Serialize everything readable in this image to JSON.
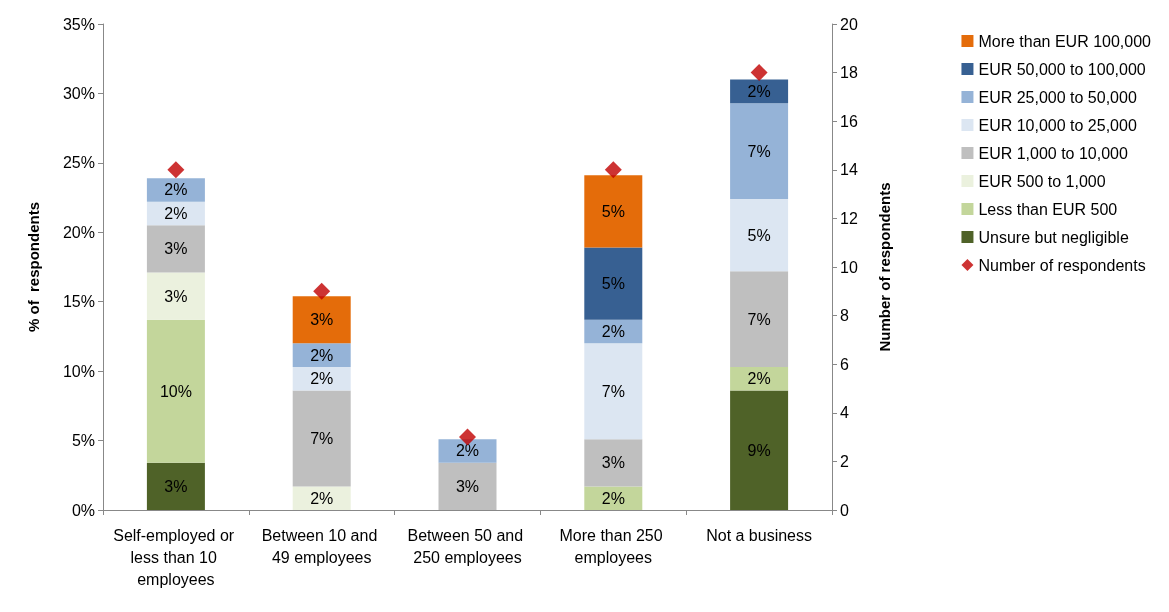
{
  "chart_data": {
    "type": "bar",
    "stacked": true,
    "ylabel": "% of  respondents",
    "y2label": "Number of respondents",
    "categories": [
      "Self-employed or less than 10 employees",
      "Between 10 and 49 employees",
      "Between 50 and 250 employees",
      "More than 250 employees",
      "Not a business"
    ],
    "series": [
      {
        "name": "Unsure but negligible",
        "color": "#4f6228",
        "values": [
          3.4,
          null,
          null,
          null,
          8.6
        ],
        "value_labels": [
          "3%",
          null,
          null,
          null,
          "9%"
        ]
      },
      {
        "name": "Less than EUR 500",
        "color": "#c3d69b",
        "values": [
          10.3,
          null,
          null,
          1.7,
          1.7
        ],
        "value_labels": [
          "10%",
          null,
          null,
          "2%",
          "2%"
        ]
      },
      {
        "name": "EUR 500 to 1,000",
        "color": "#ebf1de",
        "values": [
          3.4,
          1.7,
          null,
          null,
          null
        ],
        "value_labels": [
          "3%",
          "2%",
          null,
          null,
          null
        ]
      },
      {
        "name": "EUR 1,000 to 10,000",
        "color": "#bfbfbf",
        "values": [
          3.4,
          6.9,
          3.4,
          3.4,
          6.9
        ],
        "value_labels": [
          "3%",
          "7%",
          "3%",
          "3%",
          "7%"
        ]
      },
      {
        "name": "EUR 10,000 to 25,000",
        "color": "#dce6f2",
        "values": [
          1.7,
          1.7,
          null,
          6.9,
          5.2
        ],
        "value_labels": [
          "2%",
          "2%",
          null,
          "7%",
          "5%"
        ]
      },
      {
        "name": "EUR 25,000 to 50,000",
        "color": "#95b3d7",
        "values": [
          1.7,
          1.7,
          1.7,
          1.7,
          6.9
        ],
        "value_labels": [
          "2%",
          "2%",
          "2%",
          "2%",
          "7%"
        ]
      },
      {
        "name": "EUR 50,000 to 100,000",
        "color": "#376092",
        "values": [
          null,
          null,
          null,
          5.2,
          1.7
        ],
        "value_labels": [
          null,
          null,
          null,
          "5%",
          "2%"
        ]
      },
      {
        "name": "More than EUR 100,000",
        "color": "#e46c0a",
        "values": [
          null,
          3.4,
          null,
          5.2,
          null
        ],
        "value_labels": [
          null,
          "3%",
          null,
          "5%",
          null
        ]
      },
      {
        "name": "Number of respondents",
        "type": "scatter",
        "axis": "y2",
        "marker": "diamond",
        "color": "#c00000",
        "values": [
          14,
          9,
          3,
          14,
          18
        ]
      }
    ],
    "ylim": [
      0,
      35
    ],
    "yticks": [
      {
        "value": 0,
        "label": "0%"
      },
      {
        "value": 5,
        "label": "5%"
      },
      {
        "value": 10,
        "label": "10%"
      },
      {
        "value": 15,
        "label": "15%"
      },
      {
        "value": 20,
        "label": "20%"
      },
      {
        "value": 25,
        "label": "25%"
      },
      {
        "value": 30,
        "label": "30%"
      },
      {
        "value": 35,
        "label": "35%"
      }
    ],
    "y2lim": [
      0,
      20
    ],
    "y2ticks": [
      0,
      2,
      4,
      6,
      8,
      10,
      12,
      14,
      16,
      18,
      20
    ],
    "grid": false,
    "legend": "right"
  }
}
